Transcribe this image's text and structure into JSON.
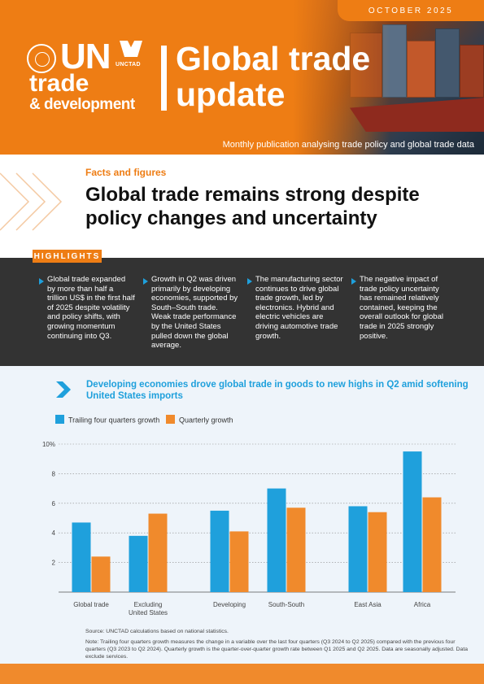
{
  "header": {
    "date": "OCTOBER 2025",
    "logo_un": "UN",
    "logo_trade": "trade",
    "logo_development": "& development",
    "unctad": "UNCTAD",
    "title_line1": "Global trade",
    "title_line2": "update",
    "subtitle": "Monthly publication analysing trade policy and global trade data"
  },
  "facts": {
    "label": "Facts and figures",
    "headline_line1": "Global trade remains strong despite",
    "headline_line2": "policy changes and uncertainty"
  },
  "highlights": {
    "label": "HIGHLIGHTS",
    "items": [
      "Global trade expanded by more than half a trillion US$ in the first half of 2025 despite volatility and policy shifts, with growing momentum continuing into Q3.",
      "Growth in Q2 was driven primarily by developing economies, supported by South–South trade. Weak trade performance by the United States pulled down the global average.",
      "The manufacturing sector continues to drive global trade growth, led by electronics. Hybrid and electric vehicles are driving automotive trade growth.",
      "The negative impact of trade policy uncertainty has remained relatively contained, keeping the overall outlook for global trade in 2025 strongly positive."
    ]
  },
  "colors": {
    "orange": "#ee7d14",
    "blue": "#1fa0dc",
    "dark_panel": "#333333",
    "bar_orange": "#f08a2c",
    "bar_blue": "#1fa0dc"
  },
  "chart_data": {
    "type": "bar",
    "title": "Developing economies drove global trade in goods to new highs in Q2 amid softening United States imports",
    "categories": [
      "Global trade",
      "Excluding United States",
      "Developing",
      "South-South",
      "East Asia",
      "Africa"
    ],
    "category_lines": [
      [
        "Global trade"
      ],
      [
        "Excluding",
        "United States"
      ],
      [
        "Developing"
      ],
      [
        "South-South"
      ],
      [
        "East Asia"
      ],
      [
        "Africa"
      ]
    ],
    "series": [
      {
        "name": "Trailing four quarters growth",
        "values": [
          4.7,
          3.8,
          5.5,
          7.0,
          5.8,
          9.5
        ]
      },
      {
        "name": "Quarterly growth",
        "values": [
          2.4,
          5.3,
          4.1,
          5.7,
          5.4,
          6.4
        ]
      }
    ],
    "ylim": [
      0,
      10
    ],
    "yticks": [
      "2",
      "4",
      "6",
      "8",
      "10%"
    ],
    "grid": true,
    "legend_position": "top-left"
  },
  "notes": {
    "source": "Source: UNCTAD calculations based on national statistics.",
    "note": "Note: Trailing four quarters growth measures the change in a variable over the last four quarters (Q3 2024 to Q2 2025) compared with the previous four quarters (Q3 2023 to Q2 2024). Quarterly growth is the quarter-over-quarter growth rate between Q1 2025 and Q2 2025. Data are seasonally adjusted. Data exclude services."
  }
}
